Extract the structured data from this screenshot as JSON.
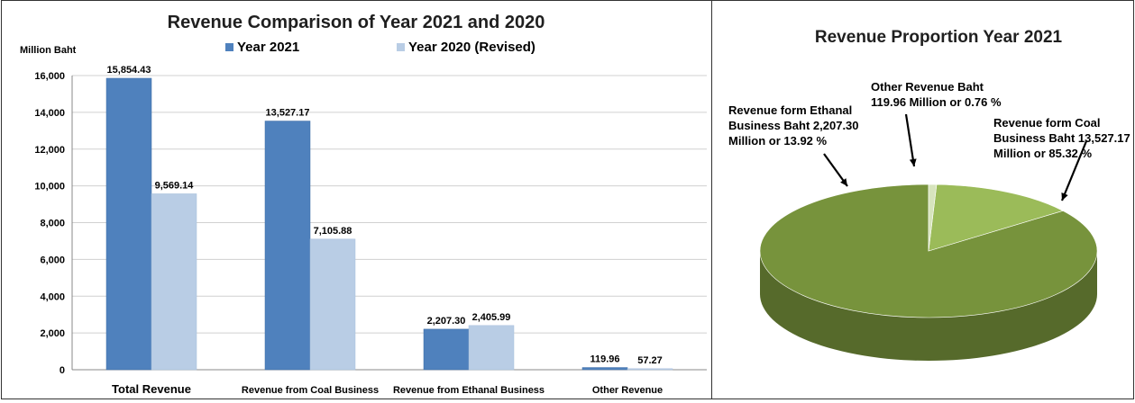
{
  "chart_data": [
    {
      "type": "bar",
      "title": "Revenue Comparison of Year 2021 and 2020",
      "ylabel": "Million Baht",
      "xlabel": "",
      "categories": [
        "Total Revenue",
        "Revenue from Coal Business",
        "Revenue from Ethanal  Business",
        "Other Revenue"
      ],
      "series": [
        {
          "name": "Year 2021",
          "values": [
            15854.43,
            13527.17,
            2207.3,
            119.96
          ],
          "labels": [
            "15,854.43",
            "13,527.17",
            "2,207.30",
            "119.96"
          ],
          "color": "#4f81bd"
        },
        {
          "name": "Year 2020 (Revised)",
          "values": [
            9569.14,
            7105.88,
            2405.99,
            57.27
          ],
          "labels": [
            "9,569.14",
            "7,105.88",
            "2,405.99",
            "57.27"
          ],
          "color": "#b9cde5"
        }
      ],
      "ylim": [
        0,
        16000
      ],
      "yticks": [
        0,
        2000,
        4000,
        6000,
        8000,
        10000,
        12000,
        14000,
        16000
      ],
      "ytick_labels": [
        "0",
        "2,000",
        "4,000",
        "6,000",
        "8,000",
        "10,000",
        "12,000",
        "14,000",
        "16,000"
      ],
      "grid": true,
      "legend_position": "top"
    },
    {
      "type": "pie",
      "title": "Revenue Proportion Year 2021",
      "slices": [
        {
          "name": "Revenue form Coal Business",
          "value": 85.32,
          "color": "#77933c",
          "annotation": [
            "Revenue form Coal",
            "Business Baht 13,527.17",
            "Million or 85.32  %"
          ]
        },
        {
          "name": "Revenue form Ethanal Business",
          "value": 13.92,
          "color": "#9bbb59",
          "annotation": [
            "Revenue form Ethanal",
            "Business Baht 2,207.30",
            "Million or 13.92 %"
          ]
        },
        {
          "name": "Other Revenue",
          "value": 0.76,
          "color": "#d7e4bd",
          "annotation": [
            "Other Revenue Baht",
            "119.96 Million or 0.76 %"
          ]
        }
      ]
    }
  ]
}
